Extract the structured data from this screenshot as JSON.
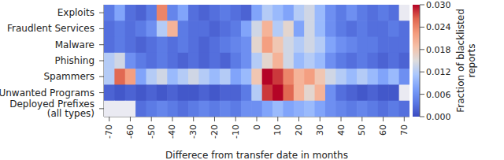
{
  "chart_data": {
    "type": "heatmap",
    "categories": [
      "Exploits",
      "Fraudlent Services",
      "Malware",
      "Phishing",
      "Spammers",
      "Unwanted Programs",
      "Deployed Prefixes\n(all types)"
    ],
    "x": [
      -70,
      -65,
      -60,
      -55,
      -50,
      -45,
      -40,
      -35,
      -30,
      -25,
      -20,
      -15,
      -10,
      -5,
      0,
      5,
      10,
      15,
      20,
      25,
      30,
      35,
      40,
      45,
      50,
      55,
      60,
      65,
      70
    ],
    "cells": [
      [
        0.004,
        0.008,
        0.003,
        0.002,
        0.004,
        0.024,
        0.005,
        0.008,
        0.003,
        0.002,
        0.003,
        0.004,
        0.003,
        0.002,
        0.008,
        0.012,
        0.01,
        0.008,
        0.012,
        0.014,
        0.01,
        0.006,
        0.004,
        0.006,
        0.004,
        0.003,
        0.004,
        0.003,
        null
      ],
      [
        0.003,
        0.004,
        0.003,
        0.004,
        0.006,
        0.012,
        0.02,
        0.004,
        0.003,
        0.003,
        0.002,
        0.003,
        0.004,
        0.008,
        0.014,
        0.02,
        0.012,
        0.016,
        0.008,
        0.014,
        0.01,
        0.006,
        0.004,
        0.003,
        0.004,
        0.003,
        0.003,
        0.004,
        0.003
      ],
      [
        0.003,
        0.004,
        0.003,
        0.002,
        0.003,
        0.004,
        0.003,
        0.004,
        0.003,
        0.002,
        0.003,
        0.004,
        0.005,
        0.006,
        0.016,
        0.022,
        0.018,
        0.014,
        0.012,
        0.014,
        0.012,
        0.008,
        0.006,
        0.005,
        0.004,
        0.004,
        0.003,
        0.003,
        0.003
      ],
      [
        0.012,
        0.014,
        0.006,
        0.004,
        0.003,
        0.004,
        0.003,
        0.002,
        0.003,
        0.002,
        0.003,
        0.002,
        0.004,
        0.006,
        0.012,
        0.016,
        0.02,
        0.014,
        0.01,
        0.012,
        0.01,
        0.006,
        0.004,
        0.003,
        0.004,
        0.003,
        0.002,
        0.003,
        0.002
      ],
      [
        0.012,
        0.026,
        0.022,
        0.008,
        0.012,
        0.014,
        0.01,
        0.012,
        0.014,
        0.012,
        0.01,
        0.012,
        0.008,
        0.01,
        0.018,
        0.03,
        0.028,
        0.024,
        0.02,
        0.022,
        0.018,
        0.014,
        0.012,
        0.01,
        0.012,
        0.01,
        0.008,
        0.01,
        0.006
      ],
      [
        0.002,
        0.001,
        0.002,
        0.001,
        0.002,
        0.001,
        0.002,
        0.001,
        0.001,
        0.002,
        0.001,
        0.002,
        0.002,
        0.004,
        0.012,
        0.028,
        0.03,
        0.026,
        0.02,
        0.016,
        0.02,
        0.006,
        0.003,
        0.002,
        0.001,
        0.002,
        0.001,
        0.001,
        null
      ],
      [
        null,
        null,
        null,
        0.003,
        0.004,
        0.005,
        0.004,
        0.003,
        0.004,
        0.005,
        0.004,
        0.005,
        0.004,
        0.006,
        0.006,
        0.008,
        0.01,
        0.008,
        0.009,
        0.01,
        0.008,
        0.006,
        0.005,
        0.004,
        0.005,
        0.004,
        0.003,
        0.004,
        0.003
      ]
    ],
    "xlim": [
      -72.5,
      72.5
    ],
    "xticks": [
      -70,
      -60,
      -50,
      -40,
      -30,
      -20,
      -10,
      0,
      10,
      20,
      30,
      40,
      50,
      60,
      70
    ],
    "xlabel": "Differece from transfer date in months",
    "colorbar_label": "Fraction of blacklisted\nreports",
    "colorbar_range": [
      0,
      0.03
    ],
    "colorbar_ticks": [
      {
        "value": 0,
        "label": "0.000"
      },
      {
        "value": 0.006,
        "label": "0.006"
      },
      {
        "value": 0.012,
        "label": "0.012"
      },
      {
        "value": 0.018,
        "label": "0.018"
      },
      {
        "value": 0.024,
        "label": "0.024"
      },
      {
        "value": 0.03,
        "label": "0.030"
      }
    ]
  }
}
